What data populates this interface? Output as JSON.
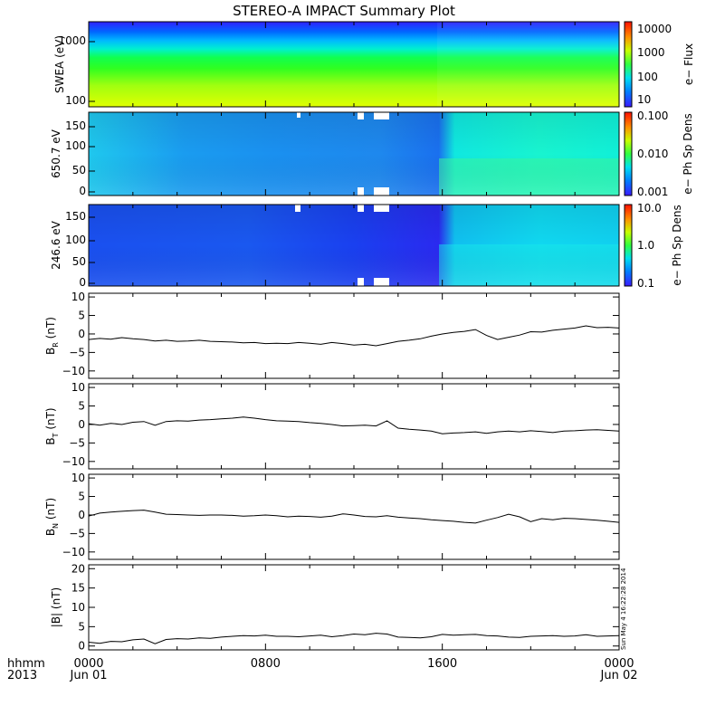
{
  "figure": {
    "title": "STEREO-A IMPACT Summary Plot",
    "time_label_top": "hhmm",
    "time_label_bottom": "2013",
    "stamp": "Sun May  4 16:22:28 2014"
  },
  "chart_data": [
    {
      "type": "heatmap",
      "ylabel": "SWEA (eV)",
      "ylog": true,
      "yticks": [
        "1000",
        "100"
      ],
      "colorbar_label": "e− Flux",
      "colorbar_ticks": [
        "10000",
        "1000",
        "100",
        "10"
      ],
      "colorscale": "rainbow",
      "description_values": {
        "energy_range_eV": [
          90,
          2000
        ],
        "flux_range": [
          5,
          20000
        ]
      }
    },
    {
      "type": "heatmap",
      "ylabel": "650.7 eV",
      "yticks": [
        "150",
        "100",
        "50",
        "0"
      ],
      "ylim": [
        0,
        180
      ],
      "colorbar_label": "e− Ph Sp Dens",
      "colorbar_ticks": [
        "0.100",
        "0.010",
        "0.001"
      ],
      "colorscale": "rainbow"
    },
    {
      "type": "heatmap",
      "ylabel": "246.6 eV",
      "yticks": [
        "150",
        "100",
        "50",
        "0"
      ],
      "ylim": [
        0,
        180
      ],
      "colorbar_label": "e− Ph Sp Dens",
      "colorbar_ticks": [
        "10.0",
        "1.0",
        "0.1"
      ],
      "colorscale": "rainbow"
    },
    {
      "type": "line",
      "ylabel": "B_R (nT)",
      "ylabel_main": "B",
      "ylabel_sub": "R",
      "ylabel_unit": "(nT)",
      "ylim": [
        -12,
        11
      ],
      "yticks": [
        "10",
        "5",
        "0",
        "−5",
        "−10"
      ],
      "x_hours": [
        0,
        0.5,
        1,
        1.5,
        2,
        2.5,
        3,
        3.5,
        4,
        4.5,
        5,
        5.5,
        6,
        6.5,
        7,
        7.5,
        8,
        8.5,
        9,
        9.5,
        10,
        10.5,
        11,
        11.5,
        12,
        12.5,
        13,
        13.5,
        14,
        14.5,
        15,
        15.5,
        16,
        16.5,
        17,
        17.5,
        18,
        18.5,
        19,
        19.5,
        20,
        20.5,
        21,
        21.5,
        22,
        22.5,
        23,
        23.5,
        24
      ],
      "values": [
        -1.5,
        -1.2,
        -1.4,
        -1.0,
        -1.3,
        -1.5,
        -1.9,
        -1.7,
        -2.0,
        -1.9,
        -1.7,
        -2.0,
        -2.1,
        -2.2,
        -2.4,
        -2.3,
        -2.6,
        -2.5,
        -2.6,
        -2.3,
        -2.5,
        -2.8,
        -2.3,
        -2.6,
        -3.0,
        -2.8,
        -3.2,
        -2.6,
        -2.0,
        -1.7,
        -1.3,
        -0.6,
        0.0,
        0.4,
        0.7,
        1.2,
        -0.4,
        -1.5,
        -0.9,
        -0.3,
        0.6,
        0.5,
        1.0,
        1.3,
        1.6,
        2.2,
        1.7,
        1.8,
        1.6
      ]
    },
    {
      "type": "line",
      "ylabel": "B_T (nT)",
      "ylabel_main": "B",
      "ylabel_sub": "T",
      "ylabel_unit": "(nT)",
      "ylim": [
        -12,
        11
      ],
      "yticks": [
        "10",
        "5",
        "0",
        "−5",
        "−10"
      ],
      "x_hours": [
        0,
        0.5,
        1,
        1.5,
        2,
        2.5,
        3,
        3.5,
        4,
        4.5,
        5,
        5.5,
        6,
        6.5,
        7,
        7.5,
        8,
        8.5,
        9,
        9.5,
        10,
        10.5,
        11,
        11.5,
        12,
        12.5,
        13,
        13.5,
        14,
        14.5,
        15,
        15.5,
        16,
        16.5,
        17,
        17.5,
        18,
        18.5,
        19,
        19.5,
        20,
        20.5,
        21,
        21.5,
        22,
        22.5,
        23,
        23.5,
        24
      ],
      "values": [
        0.2,
        -0.2,
        0.3,
        0.0,
        0.6,
        0.8,
        -0.2,
        0.8,
        1.0,
        0.9,
        1.2,
        1.3,
        1.5,
        1.7,
        2.0,
        1.7,
        1.3,
        1.0,
        0.9,
        0.8,
        0.5,
        0.3,
        0.0,
        -0.4,
        -0.3,
        -0.2,
        -0.4,
        1.0,
        -1.0,
        -1.3,
        -1.5,
        -1.8,
        -2.5,
        -2.3,
        -2.2,
        -2.0,
        -2.4,
        -2.0,
        -1.8,
        -2.0,
        -1.7,
        -1.9,
        -2.2,
        -1.8,
        -1.7,
        -1.5,
        -1.4,
        -1.6,
        -1.8
      ]
    },
    {
      "type": "line",
      "ylabel": "B_N (nT)",
      "ylabel_main": "B",
      "ylabel_sub": "N",
      "ylabel_unit": "(nT)",
      "ylim": [
        -12,
        11
      ],
      "yticks": [
        "10",
        "5",
        "0",
        "−5",
        "−10"
      ],
      "x_hours": [
        0,
        0.5,
        1,
        1.5,
        2,
        2.5,
        3,
        3.5,
        4,
        4.5,
        5,
        5.5,
        6,
        6.5,
        7,
        7.5,
        8,
        8.5,
        9,
        9.5,
        10,
        10.5,
        11,
        11.5,
        12,
        12.5,
        13,
        13.5,
        14,
        14.5,
        15,
        15.5,
        16,
        16.5,
        17,
        17.5,
        18,
        18.5,
        19,
        19.5,
        20,
        20.5,
        21,
        21.5,
        22,
        22.5,
        23,
        23.5,
        24
      ],
      "values": [
        -0.3,
        0.5,
        0.8,
        1.0,
        1.2,
        1.3,
        0.8,
        0.2,
        0.1,
        0.0,
        -0.1,
        0.0,
        0.0,
        -0.1,
        -0.3,
        -0.2,
        0.0,
        -0.2,
        -0.5,
        -0.3,
        -0.4,
        -0.6,
        -0.3,
        0.3,
        0.0,
        -0.4,
        -0.5,
        -0.2,
        -0.6,
        -0.8,
        -1.0,
        -1.3,
        -1.5,
        -1.7,
        -2.0,
        -2.2,
        -1.4,
        -0.7,
        0.2,
        -0.5,
        -1.8,
        -1.0,
        -1.3,
        -0.9,
        -1.0,
        -1.2,
        -1.4,
        -1.7,
        -2.0
      ]
    },
    {
      "type": "line",
      "ylabel": "|B| (nT)",
      "ylabel_main": "|B|",
      "ylabel_sub": "",
      "ylabel_unit": "(nT)",
      "ylim": [
        -1,
        21
      ],
      "yticks": [
        "20",
        "15",
        "10",
        "5",
        "0"
      ],
      "x_hours": [
        0,
        0.5,
        1,
        1.5,
        2,
        2.5,
        3,
        3.5,
        4,
        4.5,
        5,
        5.5,
        6,
        6.5,
        7,
        7.5,
        8,
        8.5,
        9,
        9.5,
        10,
        10.5,
        11,
        11.5,
        12,
        12.5,
        13,
        13.5,
        14,
        14.5,
        15,
        15.5,
        16,
        16.5,
        17,
        17.5,
        18,
        18.5,
        19,
        19.5,
        20,
        20.5,
        21,
        21.5,
        22,
        22.5,
        23,
        23.5,
        24
      ],
      "values": [
        1.0,
        0.7,
        1.2,
        1.1,
        1.6,
        1.8,
        0.6,
        1.7,
        1.9,
        1.8,
        2.1,
        2.0,
        2.3,
        2.5,
        2.7,
        2.6,
        2.8,
        2.5,
        2.5,
        2.4,
        2.6,
        2.8,
        2.4,
        2.7,
        3.1,
        2.9,
        3.3,
        3.1,
        2.3,
        2.2,
        2.1,
        2.4,
        3.0,
        2.8,
        2.9,
        3.0,
        2.7,
        2.6,
        2.3,
        2.2,
        2.5,
        2.6,
        2.7,
        2.5,
        2.6,
        2.9,
        2.5,
        2.6,
        2.7
      ]
    }
  ],
  "xaxis": {
    "ticks": [
      "0000",
      "0800",
      "1600",
      "0000"
    ],
    "ticks_hours": [
      0,
      8,
      16,
      24
    ],
    "date_labels": [
      "Jun 01",
      "Jun 02"
    ]
  }
}
